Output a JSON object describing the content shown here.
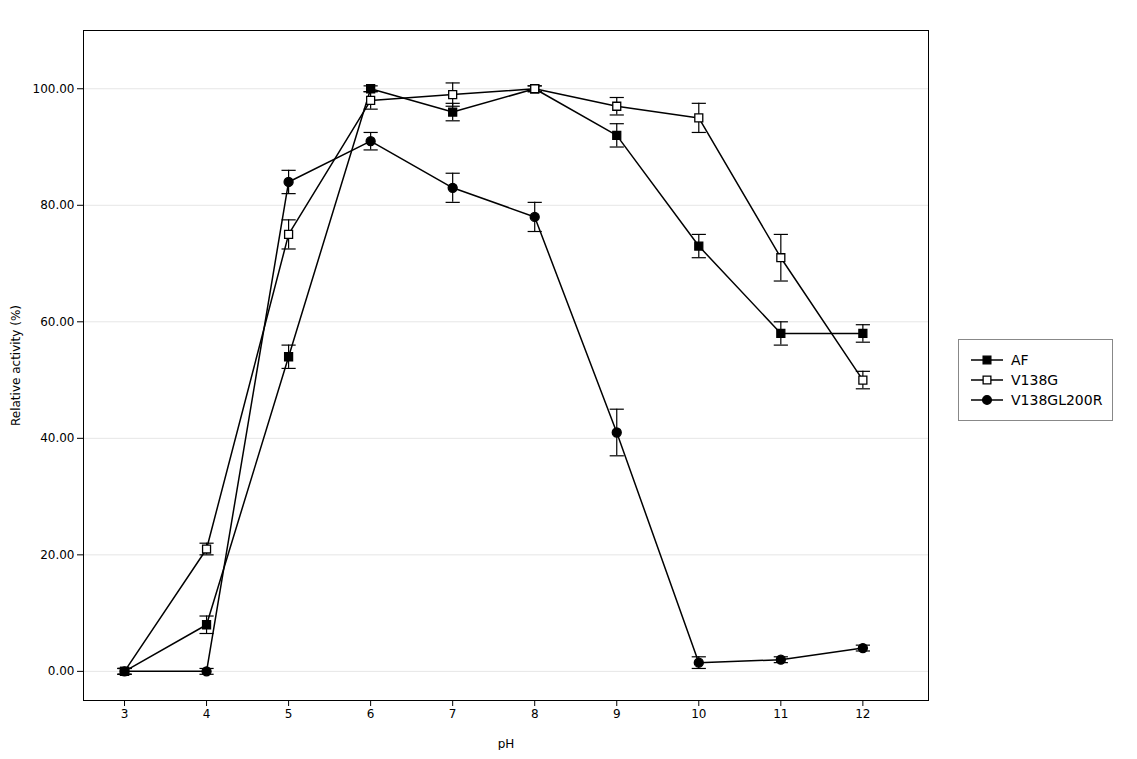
{
  "chart_data": {
    "type": "line",
    "xlabel": "pH",
    "ylabel": "Relative activity (%)",
    "x": [
      3,
      4,
      5,
      6,
      7,
      8,
      9,
      10,
      11,
      12
    ],
    "series": [
      {
        "name": "AF",
        "color": "#000000",
        "marker": "square",
        "values": [
          0.0,
          8.0,
          54.0,
          100.0,
          96.0,
          100.0,
          92.0,
          73.0,
          58.0,
          58.0
        ],
        "yerr": [
          0.5,
          1.5,
          2.0,
          0.5,
          1.5,
          0.5,
          2.0,
          2.0,
          2.0,
          1.5
        ]
      },
      {
        "name": "V138G",
        "color": "#000000",
        "marker": "open-square",
        "values": [
          0.0,
          21.0,
          75.0,
          98.0,
          99.0,
          100.0,
          97.0,
          95.0,
          71.0,
          50.0
        ],
        "yerr": [
          0.5,
          1.0,
          2.5,
          1.5,
          2.0,
          0.5,
          1.5,
          2.5,
          4.0,
          1.5
        ]
      },
      {
        "name": "V138GL200R",
        "color": "#000000",
        "marker": "circle",
        "values": [
          0.0,
          0.0,
          84.0,
          91.0,
          83.0,
          78.0,
          41.0,
          1.5,
          2.0,
          4.0
        ],
        "yerr": [
          0.5,
          0.5,
          2.0,
          1.5,
          2.5,
          2.5,
          4.0,
          1.0,
          0.5,
          0.5
        ]
      }
    ],
    "xlim": [
      2.5,
      12.8
    ],
    "ylim": [
      -5,
      110
    ],
    "xticks": [
      3,
      4,
      5,
      6,
      7,
      8,
      9,
      10,
      11,
      12
    ],
    "yticks": [
      {
        "value": 0,
        "label": "0.00"
      },
      {
        "value": 20,
        "label": "20.00"
      },
      {
        "value": 40,
        "label": "40.00"
      },
      {
        "value": 60,
        "label": "60.00"
      },
      {
        "value": 80,
        "label": "80.00"
      },
      {
        "value": 100,
        "label": "100.00"
      }
    ],
    "grid": "y",
    "legend": "right"
  }
}
